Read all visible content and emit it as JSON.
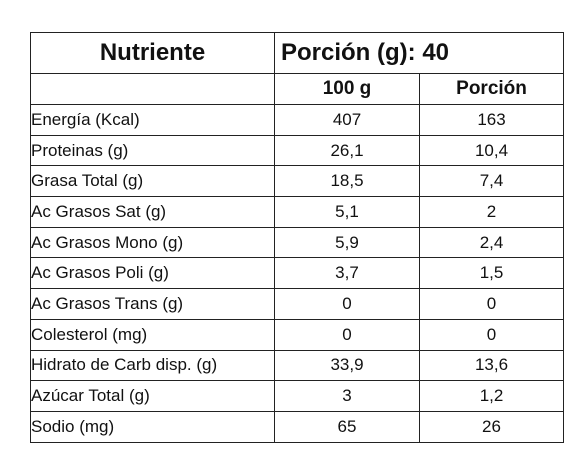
{
  "table": {
    "header": {
      "nutrient_label": "Nutriente",
      "portion_label": "Porción (g): 40"
    },
    "subheader": {
      "col_100g": "100 g",
      "col_portion": "Porción"
    },
    "rows": [
      {
        "nutrient": "Energía (Kcal)",
        "per_100g": "407",
        "per_portion": "163"
      },
      {
        "nutrient": "Proteinas (g)",
        "per_100g": "26,1",
        "per_portion": "10,4"
      },
      {
        "nutrient": "Grasa Total (g)",
        "per_100g": "18,5",
        "per_portion": "7,4"
      },
      {
        "nutrient": "Ac Grasos Sat (g)",
        "per_100g": "5,1",
        "per_portion": "2"
      },
      {
        "nutrient": "Ac Grasos Mono (g)",
        "per_100g": "5,9",
        "per_portion": "2,4"
      },
      {
        "nutrient": "Ac Grasos Poli (g)",
        "per_100g": "3,7",
        "per_portion": "1,5"
      },
      {
        "nutrient": "Ac Grasos Trans (g)",
        "per_100g": "0",
        "per_portion": "0"
      },
      {
        "nutrient": "Colesterol (mg)",
        "per_100g": "0",
        "per_portion": "0"
      },
      {
        "nutrient": "Hidrato de Carb disp. (g)",
        "per_100g": "33,9",
        "per_portion": "13,6"
      },
      {
        "nutrient": "Azúcar Total (g)",
        "per_100g": "3",
        "per_portion": "1,2"
      },
      {
        "nutrient": "Sodio (mg)",
        "per_100g": "65",
        "per_portion": "26"
      }
    ]
  }
}
